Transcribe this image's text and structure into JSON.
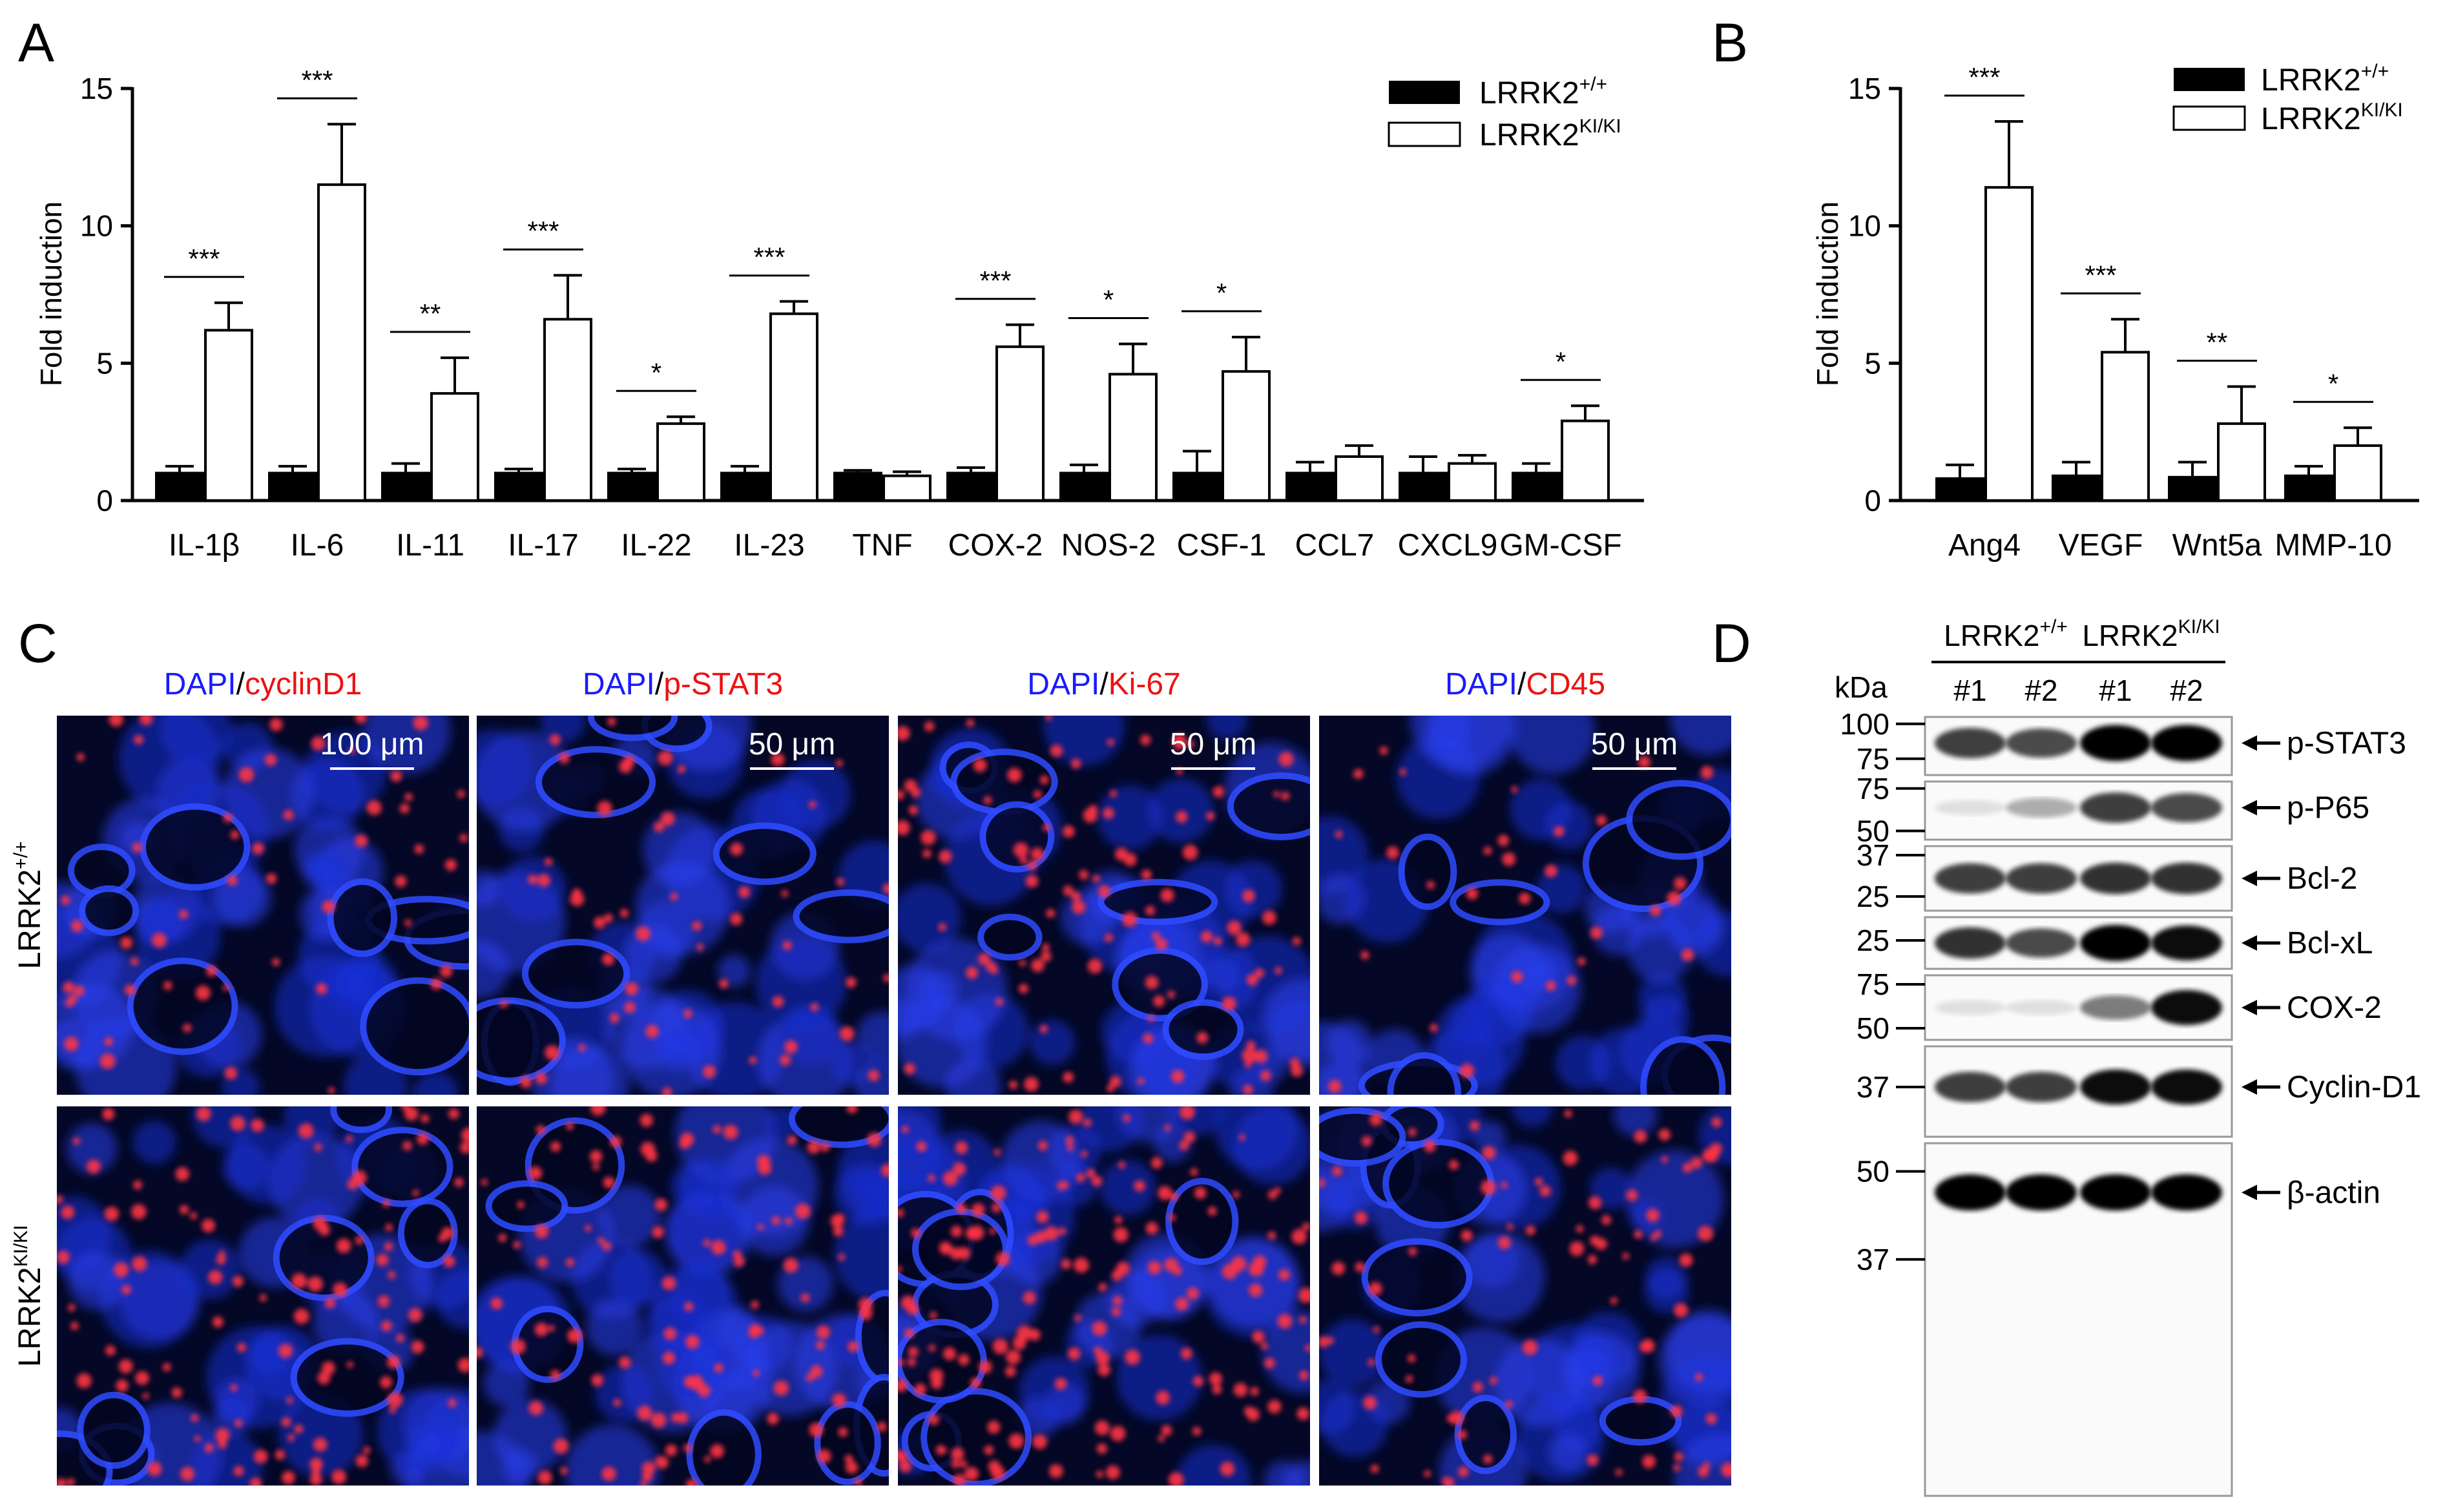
{
  "panels": {
    "A": {
      "letter": "A"
    },
    "B": {
      "letter": "B"
    },
    "C": {
      "letter": "C"
    },
    "D": {
      "letter": "D"
    }
  },
  "legend": {
    "wt": "LRRK2",
    "wt_sup": "+/+",
    "ki": "LRRK2",
    "ki_sup": "KI/KI"
  },
  "chart_data": [
    {
      "type": "bar",
      "ylabel": "Fold induction",
      "ylim": [
        0,
        15
      ],
      "yticks": [
        "0",
        "5",
        "10",
        "15"
      ],
      "categories": [
        "IL-1β",
        "IL-6",
        "IL-11",
        "IL-17",
        "IL-22",
        "IL-23",
        "TNF",
        "COX-2",
        "NOS-2",
        "CSF-1",
        "CCL7",
        "CXCL9",
        "GM-CSF"
      ],
      "series": [
        {
          "name": "LRRK2+/+",
          "color": "#000000",
          "values": [
            1.0,
            1.0,
            1.0,
            1.0,
            1.0,
            1.0,
            1.0,
            1.0,
            1.0,
            1.0,
            1.0,
            1.0,
            1.0
          ],
          "errors": [
            0.25,
            0.25,
            0.35,
            0.15,
            0.15,
            0.25,
            0.1,
            0.2,
            0.3,
            0.8,
            0.4,
            0.6,
            0.35
          ]
        },
        {
          "name": "LRRK2KI/KI",
          "color": "#ffffff",
          "values": [
            6.2,
            11.5,
            3.9,
            6.6,
            2.8,
            6.8,
            0.9,
            5.6,
            4.6,
            4.7,
            1.6,
            1.35,
            2.9
          ],
          "errors": [
            1.0,
            2.2,
            1.3,
            1.6,
            0.25,
            0.45,
            0.15,
            0.8,
            1.1,
            1.25,
            0.4,
            0.3,
            0.55
          ]
        }
      ],
      "significance": [
        "***",
        "***",
        "**",
        "***",
        "*",
        "***",
        "",
        "***",
        "*",
        "*",
        "",
        "",
        "*"
      ]
    },
    {
      "type": "bar",
      "ylabel": "Fold induction",
      "ylim": [
        0,
        15
      ],
      "yticks": [
        "0",
        "5",
        "10",
        "15"
      ],
      "categories": [
        "Ang4",
        "VEGF",
        "Wnt5a",
        "MMP-10"
      ],
      "series": [
        {
          "name": "LRRK2+/+",
          "color": "#000000",
          "values": [
            0.8,
            0.9,
            0.85,
            0.9
          ],
          "errors": [
            0.5,
            0.5,
            0.55,
            0.35
          ]
        },
        {
          "name": "LRRK2KI/KI",
          "color": "#ffffff",
          "values": [
            11.4,
            5.4,
            2.8,
            2.0
          ],
          "errors": [
            2.4,
            1.2,
            1.35,
            0.65
          ]
        }
      ],
      "significance": [
        "***",
        "***",
        "**",
        "*"
      ]
    }
  ],
  "microscopy": {
    "stains": [
      {
        "dapi": "DAPI",
        "sep": "/",
        "marker": "cyclinD1",
        "scale": "100 μm"
      },
      {
        "dapi": "DAPI",
        "sep": "/",
        "marker": "p-STAT3",
        "scale": "50 μm"
      },
      {
        "dapi": "DAPI",
        "sep": "/",
        "marker": "Ki-67",
        "scale": "50 μm"
      },
      {
        "dapi": "DAPI",
        "sep": "/",
        "marker": "CD45",
        "scale": "50 μm"
      }
    ],
    "rows": [
      {
        "label": "LRRK2",
        "sup": "+/+"
      },
      {
        "label": "LRRK2",
        "sup": "KI/KI"
      }
    ]
  },
  "western_blot": {
    "unit": "kDa",
    "groups": [
      {
        "label": "LRRK2",
        "sup": "+/+"
      },
      {
        "label": "LRRK2",
        "sup": "KI/KI"
      }
    ],
    "lanes": [
      "#1",
      "#2",
      "#1",
      "#2"
    ],
    "blots": [
      {
        "name": "p-STAT3",
        "markers": [
          "100",
          "75"
        ],
        "intensity": [
          0.75,
          0.7,
          1.0,
          1.0
        ]
      },
      {
        "name": "p-P65",
        "markers": [
          "75",
          "50"
        ],
        "intensity": [
          0.1,
          0.3,
          0.75,
          0.7
        ]
      },
      {
        "name": "Bcl-2",
        "markers": [
          "37",
          "25"
        ],
        "intensity": [
          0.75,
          0.75,
          0.8,
          0.8
        ]
      },
      {
        "name": "Bcl-xL",
        "markers": [
          "25"
        ],
        "intensity": [
          0.8,
          0.7,
          1.0,
          0.95
        ]
      },
      {
        "name": "COX-2",
        "markers": [
          "75",
          "50"
        ],
        "intensity": [
          0.1,
          0.1,
          0.5,
          0.95
        ]
      },
      {
        "name": "Cyclin-D1",
        "markers": [
          "37"
        ],
        "intensity": [
          0.75,
          0.75,
          0.95,
          0.95
        ]
      },
      {
        "name": "β-actin",
        "markers": [
          "50",
          "37"
        ],
        "intensity": [
          1.0,
          1.0,
          1.0,
          1.0
        ]
      }
    ]
  }
}
